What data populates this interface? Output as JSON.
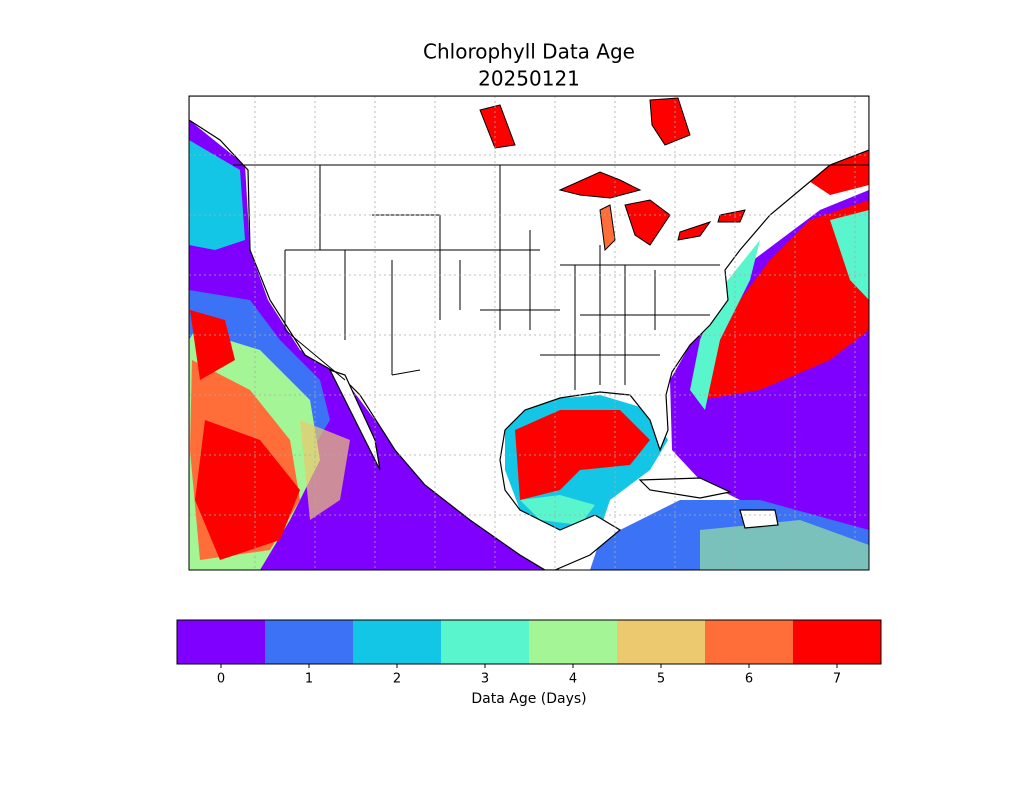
{
  "title": "Chlorophyll Data Age",
  "date": "20250121",
  "colorbar": {
    "label": "Data Age (Days)",
    "ticks": [
      0,
      1,
      2,
      3,
      4,
      5,
      6,
      7
    ],
    "colors": [
      "#7f00ff",
      "#3c72f6",
      "#13c6e6",
      "#59f5cc",
      "#a4f595",
      "#ecc86f",
      "#ff6d38",
      "#ff0000"
    ]
  }
}
